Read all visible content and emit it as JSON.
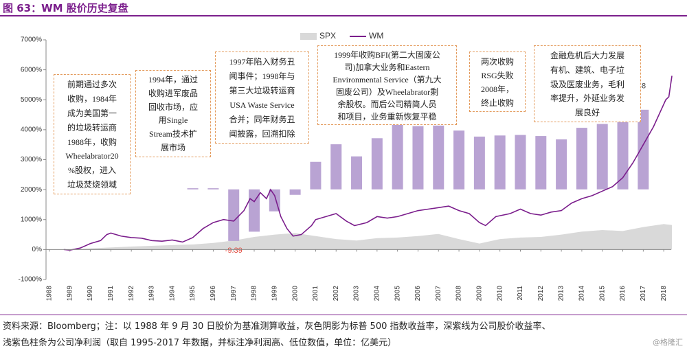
{
  "title": "图 63：WM 股价历史复盘",
  "chart_data": {
    "type": "combo",
    "xlim": [
      1987.7,
      2018.7
    ],
    "xticks": [
      1988,
      1989,
      1990,
      1991,
      1992,
      1993,
      1994,
      1995,
      1996,
      1997,
      1998,
      1999,
      2000,
      2001,
      2002,
      2003,
      2004,
      2005,
      2006,
      2007,
      2008,
      2009,
      2010,
      2011,
      2012,
      2013,
      2014,
      2015,
      2016,
      2017,
      2018
    ],
    "ylim": [
      -1000,
      7000
    ],
    "yticks": [
      {
        "value": -1000,
        "label": "-1000%"
      },
      {
        "value": 0,
        "label": "0%"
      },
      {
        "value": 1000,
        "label": "1000%"
      },
      {
        "value": 2000,
        "label": "2000%"
      },
      {
        "value": 3000,
        "label": "3000%"
      },
      {
        "value": 4000,
        "label": "4000%"
      },
      {
        "value": 5000,
        "label": "5000%"
      },
      {
        "value": 6000,
        "label": "6000%"
      },
      {
        "value": 7000,
        "label": "7000%"
      }
    ],
    "y2lim": [
      -16.4,
      27.2
    ],
    "grid": false,
    "legend": "top",
    "series": [
      {
        "name": "SPX",
        "type": "area",
        "color": "#d9d9d9",
        "x": [
          1988.7,
          1990,
          1992,
          1994,
          1995,
          1996,
          1997,
          1998,
          1999,
          2000,
          2001,
          2002,
          2003,
          2004,
          2005,
          2006,
          2007,
          2008,
          2009,
          2010,
          2011,
          2012,
          2013,
          2014,
          2015,
          2016,
          2017,
          2018,
          2018.4
        ],
        "values": [
          0,
          40,
          100,
          150,
          170,
          220,
          300,
          420,
          500,
          550,
          450,
          350,
          300,
          380,
          400,
          450,
          520,
          350,
          200,
          350,
          400,
          420,
          500,
          600,
          650,
          620,
          750,
          850,
          820
        ]
      },
      {
        "name": "WM",
        "type": "line",
        "color": "#7b1e8c",
        "x": [
          1988.7,
          1989,
          1989.5,
          1990,
          1990.5,
          1990.8,
          1991,
          1991.5,
          1992,
          1992.5,
          1993,
          1993.5,
          1994,
          1994.5,
          1995,
          1995.5,
          1996,
          1996.5,
          1997,
          1997.5,
          1997.8,
          1998,
          1998.3,
          1998.6,
          1998.8,
          1999,
          1999.3,
          1999.6,
          1999.9,
          2000.3,
          2000.8,
          2001,
          2001.5,
          2002,
          2002.5,
          2002.9,
          2003.5,
          2004,
          2004.5,
          2005,
          2005.5,
          2006,
          2006.5,
          2007,
          2007.5,
          2008,
          2008.5,
          2009,
          2009.3,
          2009.8,
          2010.5,
          2011,
          2011.5,
          2012,
          2012.5,
          2013,
          2013.5,
          2014,
          2014.5,
          2015,
          2015.5,
          2016,
          2016.5,
          2017,
          2017.5,
          2017.9,
          2018.1,
          2018.25,
          2018.4
        ],
        "values": [
          0,
          -20,
          50,
          200,
          300,
          500,
          550,
          450,
          400,
          380,
          300,
          280,
          320,
          250,
          400,
          700,
          900,
          1000,
          950,
          1300,
          1700,
          1600,
          1900,
          1700,
          2000,
          1800,
          1100,
          700,
          450,
          500,
          800,
          1000,
          1100,
          1200,
          950,
          800,
          900,
          1100,
          1050,
          1100,
          1200,
          1300,
          1350,
          1400,
          1450,
          1300,
          1200,
          900,
          800,
          1100,
          1200,
          1350,
          1200,
          1150,
          1250,
          1300,
          1550,
          1700,
          1800,
          1950,
          2100,
          2400,
          2900,
          3500,
          4100,
          4700,
          5000,
          5100,
          5800
        ]
      }
    ],
    "bars": {
      "type": "bar",
      "axis": "y2",
      "color": "#b9a3d3",
      "x": [
        1995,
        1996,
        1997,
        1998,
        1999,
        2000,
        2001,
        2002,
        2003,
        2004,
        2005,
        2006,
        2007,
        2008,
        2009,
        2010,
        2011,
        2012,
        2013,
        2014,
        2015,
        2016,
        2017
      ],
      "values": [
        0.2,
        0.2,
        -9.39,
        -7.7,
        -4.0,
        -1.0,
        5.0,
        8.2,
        6.0,
        9.3,
        11.8,
        11.5,
        11.6,
        10.7,
        9.6,
        9.8,
        9.9,
        9.7,
        9.1,
        11.2,
        11.9,
        12.5,
        14.48
      ],
      "labeled": [
        2,
        22
      ]
    },
    "annotations": [
      {
        "lines": [
          "前期通过多次",
          "收购，1984年",
          "成为美国第一",
          "的垃圾转运商",
          "1988年，收购",
          "Wheelabrator20",
          "%股权，进入",
          "垃圾焚烧领域"
        ]
      },
      {
        "lines": [
          "1994年，通过",
          "收购进军废品",
          "回收市场，应",
          "用Single",
          "Stream技术扩",
          "展市场"
        ]
      },
      {
        "lines": [
          "1997年陷入财务丑",
          "闻事件；1998年与",
          "第三大垃圾转运商",
          "USA Waste Service",
          "合并；同年财务丑",
          "闻披露，回溯扣除"
        ]
      },
      {
        "lines": [
          "1999年收购BFI(第二大固废公",
          "司)加拿大业务和Eastern",
          "Environmental Service（第九大",
          "固废公司）及Wheelabrator剩",
          "余股权。而后公司精简人员",
          "和项目，业务重新恢复平稳"
        ]
      },
      {
        "lines": [
          "两次收购",
          "RSG失败",
          "2008年，",
          "终止收购"
        ]
      },
      {
        "lines": [
          "金融危机后大力发展",
          "有机、建筑、电子垃",
          "圾及医废业务，毛利",
          "率提升，外延业务发",
          "展良好"
        ]
      }
    ]
  },
  "footer": [
    "资料来源：Bloomberg；注：以 1988 年 9 月 30 日股价为基准测算收益，灰色阴影为标普 500 指数收益率，深紫线为公司股价收益率、",
    "浅紫色柱条为公司净利润（取自 1995-2017 年数据，并标注净利润高、低位数值，单位：亿美元）"
  ],
  "watermark": "@格隆汇"
}
